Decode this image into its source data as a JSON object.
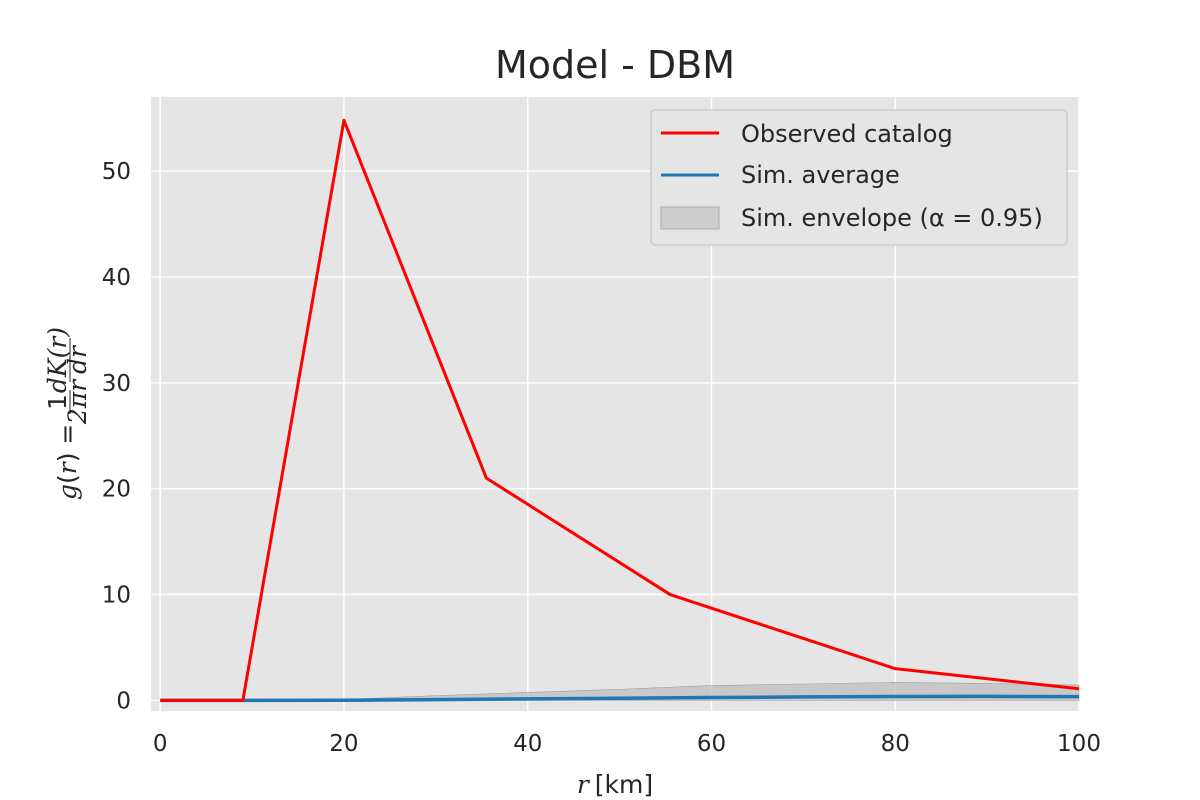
{
  "chart_data": {
    "type": "line",
    "title": "Model - DBM",
    "xlabel": "r  [km]",
    "ylabel": "g(r) = (1/2πr) dK(r)/dr",
    "xlim": [
      -1,
      100
    ],
    "ylim": [
      -1,
      57
    ],
    "xticks": [
      0,
      20,
      40,
      60,
      80,
      100
    ],
    "yticks": [
      0,
      10,
      20,
      30,
      40,
      50
    ],
    "grid": true,
    "legend_position": "top-right",
    "series": [
      {
        "name": "Observed catalog",
        "color": "#ff0000",
        "x": [
          0,
          9,
          20,
          35.5,
          55.5,
          80,
          100
        ],
        "y": [
          0,
          0,
          54.8,
          21.0,
          10.0,
          3.0,
          1.1
        ]
      },
      {
        "name": "Sim. average",
        "color": "#1f77b4",
        "x": [
          0,
          10,
          20,
          30,
          40,
          50,
          60,
          70,
          80,
          90,
          100
        ],
        "y": [
          0,
          0,
          0.02,
          0.08,
          0.15,
          0.2,
          0.27,
          0.33,
          0.37,
          0.38,
          0.36
        ]
      }
    ],
    "envelope": {
      "name": "Sim. envelope (α = 0.95)",
      "color": "#bdbdbd",
      "x": [
        0,
        10,
        20,
        30,
        40,
        50,
        60,
        70,
        80,
        90,
        100
      ],
      "lower": [
        0,
        0,
        0,
        0,
        0,
        0,
        0,
        0,
        0,
        0,
        0
      ],
      "upper": [
        0,
        0,
        0.08,
        0.45,
        0.75,
        1.05,
        1.4,
        1.55,
        1.7,
        1.6,
        1.45
      ]
    }
  }
}
